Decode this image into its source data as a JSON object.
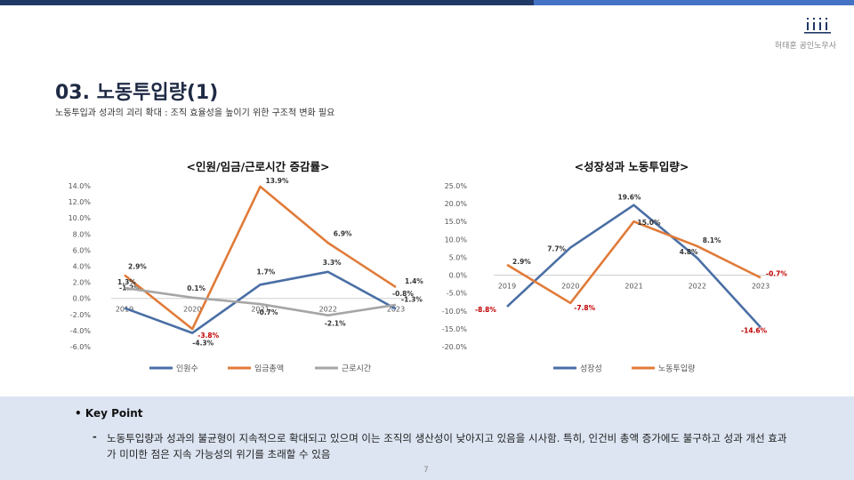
{
  "header": {
    "company": "허태훈 공인노무사",
    "title": "03. 노동투입량(1)",
    "subtitle": "노동투입과 성과의 괴리 확대 : 조직 효율성을 높이기 위한 구조적 변화 필요"
  },
  "colors": {
    "blue": "#4a6fa5",
    "orange": "#e07b39",
    "gray": "#a6a6a6",
    "red": "#c00000",
    "dark": "#1f3864"
  },
  "chart_data": [
    {
      "type": "line",
      "title": "<인원/임금/근로시간 증감률>",
      "x": [
        "2019",
        "2020",
        "2021",
        "2022",
        "2023"
      ],
      "ylim": [
        -6,
        14
      ],
      "yticks": [
        "14.0%",
        "12.0%",
        "10.0%",
        "8.0%",
        "6.0%",
        "4.0%",
        "2.0%",
        "0.0%",
        "-2.0%",
        "-4.0%",
        "-6.0%"
      ],
      "legend_position": "bottom",
      "series": [
        {
          "name": "인원수",
          "color": "#4a6fa5",
          "values": [
            -1.2,
            -4.3,
            1.7,
            3.3,
            -1.3
          ],
          "labels": [
            "-1.2%",
            "-4.3%",
            "1.7%",
            "3.3%",
            "-1.3%"
          ]
        },
        {
          "name": "임금총액",
          "color": "#e07b39",
          "values": [
            2.9,
            -3.8,
            13.9,
            6.9,
            1.4
          ],
          "labels": [
            "2.9%",
            "-3.8%",
            "13.9%",
            "6.9%",
            "1.4%"
          ]
        },
        {
          "name": "근로시간",
          "color": "#a6a6a6",
          "values": [
            1.3,
            0.1,
            -0.7,
            -2.1,
            -0.8
          ],
          "labels": [
            "1.3%",
            "0.1%",
            "-0.7%",
            "-2.1%",
            "-0.8%"
          ]
        }
      ]
    },
    {
      "type": "line",
      "title": "<성장성과 노동투입량>",
      "x": [
        "2019",
        "2020",
        "2021",
        "2022",
        "2023"
      ],
      "ylim": [
        -20,
        25
      ],
      "yticks": [
        "25.0%",
        "20.0%",
        "15.0%",
        "10.0%",
        "5.0%",
        "0.0%",
        "-5.0%",
        "-10.0%",
        "-15.0%",
        "-20.0%"
      ],
      "legend_position": "bottom",
      "series": [
        {
          "name": "성장성",
          "color": "#4a6fa5",
          "values": [
            -8.8,
            7.7,
            19.6,
            4.8,
            -14.6
          ],
          "labels": [
            "-8.8%",
            "7.7%",
            "19.6%",
            "4.8%",
            "-14.6%"
          ]
        },
        {
          "name": "노동투입량",
          "color": "#e07b39",
          "values": [
            2.9,
            -7.8,
            15.0,
            8.1,
            -0.7
          ],
          "labels": [
            "2.9%",
            "-7.8%",
            "15.0%",
            "8.1%",
            "-0.7%"
          ]
        }
      ]
    }
  ],
  "key_point": {
    "title": "Key Point",
    "dash": "-",
    "text": "노동투입량과 성과의 불균형이 지속적으로 확대되고 있으며 이는 조직의 생산성이 낮아지고 있음을 시사함. 특히, 인건비 총액 증가에도 불구하고 성과 개선 효과가 미미한 점은 지속 가능성의 위기를 초래할 수 있음"
  },
  "page_number": "7"
}
